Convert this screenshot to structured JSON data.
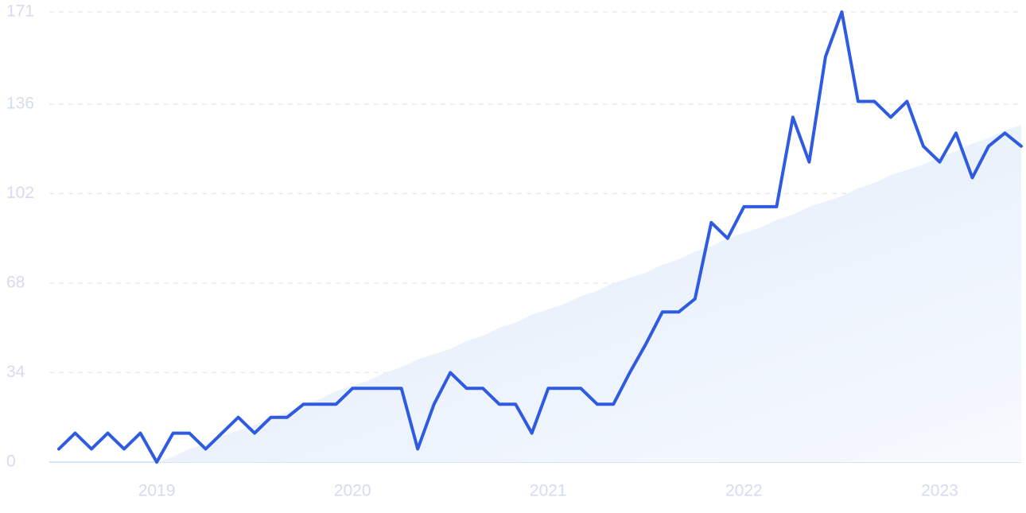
{
  "chart_data": {
    "type": "line",
    "categories": [
      null,
      null,
      null,
      null,
      null,
      null,
      "2019",
      null,
      null,
      null,
      null,
      null,
      null,
      null,
      null,
      null,
      null,
      null,
      "2020",
      null,
      null,
      null,
      null,
      null,
      null,
      null,
      null,
      null,
      null,
      null,
      "2021",
      null,
      null,
      null,
      null,
      null,
      null,
      null,
      null,
      null,
      null,
      null,
      "2022",
      null,
      null,
      null,
      null,
      null,
      null,
      null,
      null,
      null,
      null,
      null,
      "2023",
      null,
      null,
      null,
      null,
      null
    ],
    "series": [
      {
        "color": "#d6e6fa",
        "area": true,
        "values": [
          0,
          0,
          0,
          0,
          0,
          0,
          0,
          2,
          5,
          7,
          10,
          12,
          14,
          17,
          19,
          22,
          24,
          27,
          29,
          31,
          34,
          36,
          39,
          41,
          43,
          46,
          48,
          51,
          53,
          56,
          58,
          60,
          63,
          65,
          68,
          70,
          72,
          75,
          77,
          80,
          82,
          85,
          87,
          89,
          92,
          94,
          97,
          99,
          101,
          104,
          106,
          109,
          111,
          113,
          116,
          118,
          121,
          123,
          126,
          128
        ]
      },
      {
        "color": "#2f5be0",
        "values": [
          5,
          11,
          5,
          11,
          5,
          11,
          0,
          11,
          11,
          5,
          11,
          17,
          11,
          17,
          17,
          22,
          22,
          22,
          28,
          28,
          28,
          28,
          5,
          22,
          34,
          28,
          28,
          22,
          22,
          11,
          28,
          28,
          28,
          22,
          22,
          34,
          45,
          57,
          57,
          62,
          91,
          85,
          97,
          97,
          97,
          131,
          114,
          154,
          171,
          137,
          137,
          131,
          137,
          120,
          114,
          125,
          108,
          120,
          125,
          120
        ]
      }
    ],
    "ylim": [
      0,
      171
    ],
    "yticks": [
      0,
      34,
      68,
      102,
      136,
      171
    ],
    "grid": true
  }
}
